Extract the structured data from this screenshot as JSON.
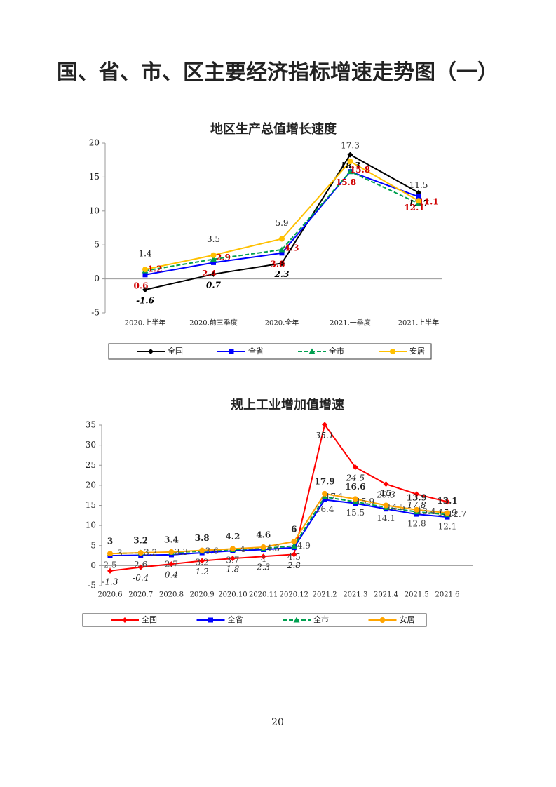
{
  "title": "国、省、市、区主要经济指标增速走势图（一）",
  "chart_data": [
    {
      "type": "line",
      "title": "地区生产总值增长速度",
      "categories": [
        "2020.上半年",
        "2020.前三季度",
        "2020.全年",
        "2021.一季度",
        "2021.上半年"
      ],
      "ylim": [
        -5,
        20
      ],
      "yticks": [
        -5,
        0,
        5,
        10,
        15,
        20
      ],
      "grid": false,
      "legend": "bottom",
      "series": [
        {
          "name": "全国",
          "color": "#000000",
          "values": [
            -1.6,
            0.7,
            2.3,
            18.3,
            12.7
          ]
        },
        {
          "name": "全省",
          "color": "#0000ff",
          "values": [
            0.6,
            2.4,
            3.8,
            15.8,
            12.1
          ]
        },
        {
          "name": "全市",
          "color": "#00a050",
          "values": [
            1.2,
            2.9,
            4.3,
            15.8,
            11.1
          ]
        },
        {
          "name": "安居",
          "color": "#ffc000",
          "values": [
            1.4,
            3.5,
            5.9,
            17.3,
            11.5
          ]
        }
      ]
    },
    {
      "type": "line",
      "title": "规上工业增加值增速",
      "categories": [
        "2020.6",
        "2020.7",
        "2020.8",
        "2020.9",
        "2020.10",
        "2020.11",
        "2020.12",
        "2021.2",
        "2021.3",
        "2021.4",
        "2021.5",
        "2021.6"
      ],
      "ylim": [
        -5,
        35
      ],
      "yticks": [
        -5,
        0,
        5,
        10,
        15,
        20,
        25,
        30,
        35
      ],
      "grid": false,
      "legend": "bottom",
      "series": [
        {
          "name": "全国",
          "color": "#ff0000",
          "values": [
            -1.3,
            -0.4,
            0.4,
            1.2,
            1.8,
            2.3,
            2.8,
            35.1,
            24.5,
            20.3,
            17.8,
            15.9
          ]
        },
        {
          "name": "全省",
          "color": "#0000ff",
          "values": [
            2.5,
            2.6,
            2.7,
            3.2,
            3.7,
            4,
            4.5,
            16.4,
            15.5,
            14.1,
            12.8,
            12.1
          ]
        },
        {
          "name": "全市",
          "color": "#00a050",
          "values": [
            3,
            3.2,
            3.3,
            3.6,
            4,
            4.3,
            4.9,
            17.1,
            15.9,
            14.5,
            13.4,
            12.7
          ]
        },
        {
          "name": "安居",
          "color": "#ffa500",
          "values": [
            3,
            3.2,
            3.4,
            3.8,
            4.2,
            4.6,
            6,
            17.9,
            16.6,
            15,
            13.9,
            13.1
          ]
        }
      ]
    }
  ],
  "page_number": "20"
}
